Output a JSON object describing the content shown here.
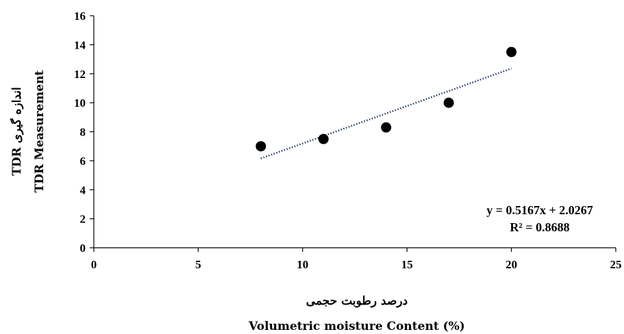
{
  "chart_data": {
    "type": "scatter",
    "xlabel_fa": "درصد رطوبت حجمی",
    "xlabel": "Volumetric moisture Content (%)",
    "ylabel_fa": "TDR اندازه گیری",
    "ylabel": "TDR  Measurement",
    "xlim": [
      0,
      25
    ],
    "ylim": [
      0,
      16
    ],
    "xticks": [
      0,
      5,
      10,
      15,
      20,
      25
    ],
    "yticks": [
      0,
      2,
      4,
      6,
      8,
      10,
      12,
      14,
      16
    ],
    "grid": false,
    "points": [
      {
        "x": 8,
        "y": 7.0
      },
      {
        "x": 11,
        "y": 7.5
      },
      {
        "x": 14,
        "y": 8.3
      },
      {
        "x": 17,
        "y": 10.0
      },
      {
        "x": 20,
        "y": 13.5
      }
    ],
    "trendline": {
      "type": "linear",
      "slope": 0.5167,
      "intercept": 2.0267,
      "x_range": [
        8,
        20
      ],
      "color": "#1f3864",
      "equation": "y = 0.5167x + 2.0267",
      "r_squared": "R² = 0.8688"
    },
    "marker_color": "#000000"
  }
}
